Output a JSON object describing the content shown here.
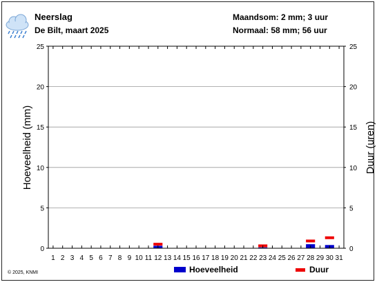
{
  "header": {
    "title": "Neerslag",
    "subtitle": "De Bilt, maart 2025",
    "month_total": "Maandsom: 2 mm; 3 uur",
    "normal": "Normaal: 58 mm; 56 uur",
    "weather_icon": "rain-cloud-icon"
  },
  "footer": {
    "copyright": "© 2025, KNMI"
  },
  "colors": {
    "amount": "#0000cc",
    "duration": "#ee0000",
    "grid": "#999999"
  },
  "chart_data": {
    "type": "bar",
    "ylabel": "Hoeveelheid (mm)",
    "y2label": "Duur (uren)",
    "ylim": [
      0,
      25
    ],
    "y2lim": [
      0,
      25
    ],
    "yticks": [
      "0",
      "5",
      "10",
      "15",
      "20",
      "25"
    ],
    "grid": true,
    "categories": [
      "1",
      "2",
      "3",
      "4",
      "5",
      "6",
      "7",
      "8",
      "9",
      "10",
      "11",
      "12",
      "13",
      "14",
      "15",
      "16",
      "17",
      "18",
      "19",
      "20",
      "21",
      "22",
      "23",
      "24",
      "25",
      "26",
      "27",
      "28",
      "29",
      "30",
      "31"
    ],
    "series": [
      {
        "name": "Hoeveelheid",
        "kind": "bar",
        "color": "#0000cc",
        "values": [
          0,
          0,
          0,
          0,
          0,
          0,
          0,
          0,
          0,
          0,
          0,
          0.3,
          0,
          0,
          0,
          0,
          0,
          0,
          0,
          0,
          0,
          0,
          0.1,
          0,
          0,
          0,
          0,
          0.5,
          0,
          0.4,
          0
        ]
      },
      {
        "name": "Duur",
        "kind": "marker",
        "color": "#ee0000",
        "values": [
          0,
          0,
          0,
          0,
          0,
          0,
          0,
          0,
          0,
          0,
          0,
          0.5,
          0,
          0,
          0,
          0,
          0,
          0,
          0,
          0,
          0,
          0,
          0.3,
          0,
          0,
          0,
          0,
          0.9,
          0,
          1.3,
          0
        ]
      }
    ],
    "legend": [
      "Hoeveelheid",
      "Duur"
    ],
    "legend_position": "bottom"
  }
}
